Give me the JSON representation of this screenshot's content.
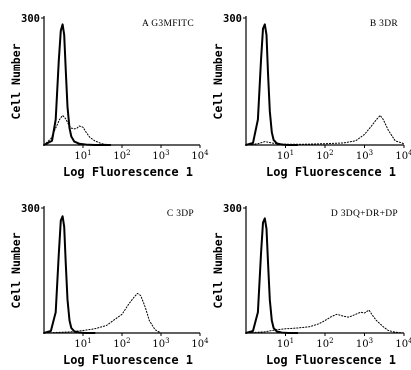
{
  "chart_data": [
    {
      "type": "line",
      "title": "A G3MFITC",
      "xlabel": "Log Fluorescence 1",
      "ylabel": "Cell Number",
      "xscale": "log",
      "xlim": [
        1,
        10000
      ],
      "ylim": [
        0,
        300
      ],
      "yticks": [
        "300"
      ],
      "xticks": [
        {
          "base": "10",
          "exp": "1"
        },
        {
          "base": "10",
          "exp": "2"
        },
        {
          "base": "10",
          "exp": "3"
        },
        {
          "base": "10",
          "exp": "4"
        }
      ],
      "series": [
        {
          "style": "solid",
          "x": [
            1.0,
            1.6,
            2.0,
            2.4,
            2.7,
            3.0,
            3.3,
            3.6,
            4.0,
            4.5,
            5.0,
            6.0,
            8.0,
            12,
            20,
            50
          ],
          "y": [
            0,
            10,
            60,
            200,
            270,
            285,
            260,
            180,
            90,
            40,
            20,
            8,
            3,
            1,
            0,
            0
          ]
        },
        {
          "style": "dotted",
          "x": [
            1.0,
            1.5,
            2.0,
            2.5,
            3.0,
            3.6,
            4.3,
            5.0,
            6.0,
            7.0,
            8.0,
            10,
            12,
            15,
            20,
            30,
            50
          ],
          "y": [
            0,
            15,
            40,
            60,
            70,
            62,
            48,
            40,
            38,
            40,
            45,
            42,
            30,
            18,
            10,
            3,
            0
          ]
        }
      ]
    },
    {
      "type": "line",
      "title": "B 3DR",
      "xlabel": "Log Fluorescence 1",
      "ylabel": "Cell Number",
      "xscale": "log",
      "xlim": [
        1,
        10000
      ],
      "ylim": [
        0,
        300
      ],
      "yticks": [
        "300"
      ],
      "xticks": [
        {
          "base": "10",
          "exp": "1"
        },
        {
          "base": "10",
          "exp": "2"
        },
        {
          "base": "10",
          "exp": "3"
        },
        {
          "base": "10",
          "exp": "4"
        }
      ],
      "series": [
        {
          "style": "solid",
          "x": [
            1.0,
            1.5,
            2.0,
            2.4,
            2.7,
            3.0,
            3.3,
            3.6,
            4.0,
            4.5,
            5.0,
            6.0,
            8.0,
            12,
            20
          ],
          "y": [
            0,
            5,
            60,
            200,
            275,
            285,
            260,
            170,
            80,
            30,
            12,
            4,
            1,
            0,
            0
          ]
        },
        {
          "style": "dotted",
          "x": [
            1.0,
            2.0,
            3.0,
            5.0,
            10,
            30,
            100,
            300,
            600,
            1000,
            1500,
            2000,
            2500,
            3000,
            4000,
            6000,
            10000
          ],
          "y": [
            0,
            3,
            8,
            4,
            2,
            2,
            3,
            5,
            10,
            25,
            45,
            60,
            70,
            60,
            35,
            10,
            3
          ]
        }
      ]
    },
    {
      "type": "line",
      "title": "C 3DP",
      "xlabel": "Log Fluorescence 1",
      "ylabel": "Cell Number",
      "xscale": "log",
      "xlim": [
        1,
        10000
      ],
      "ylim": [
        0,
        300
      ],
      "yticks": [
        "300"
      ],
      "xticks": [
        {
          "base": "10",
          "exp": "1"
        },
        {
          "base": "10",
          "exp": "2"
        },
        {
          "base": "10",
          "exp": "3"
        },
        {
          "base": "10",
          "exp": "4"
        }
      ],
      "series": [
        {
          "style": "solid",
          "x": [
            1.0,
            1.5,
            2.0,
            2.4,
            2.7,
            3.0,
            3.3,
            3.6,
            4.0,
            4.5,
            5.0,
            6.0,
            8.0,
            12,
            20
          ],
          "y": [
            0,
            5,
            50,
            190,
            270,
            280,
            255,
            170,
            80,
            30,
            12,
            4,
            1,
            0,
            0
          ]
        },
        {
          "style": "dotted",
          "x": [
            1.0,
            3.0,
            5.0,
            10,
            20,
            40,
            60,
            100,
            150,
            200,
            250,
            300,
            350,
            400,
            500,
            700,
            1000
          ],
          "y": [
            0,
            2,
            3,
            6,
            10,
            18,
            30,
            45,
            70,
            85,
            95,
            90,
            75,
            60,
            30,
            8,
            0
          ]
        }
      ]
    },
    {
      "type": "line",
      "title": "D 3DQ+DR+DP",
      "xlabel": "Log Fluorescence 1",
      "ylabel": "Cell Number",
      "xscale": "log",
      "xlim": [
        1,
        10000
      ],
      "ylim": [
        0,
        300
      ],
      "yticks": [
        "300"
      ],
      "xticks": [
        {
          "base": "10",
          "exp": "1"
        },
        {
          "base": "10",
          "exp": "2"
        },
        {
          "base": "10",
          "exp": "3"
        },
        {
          "base": "10",
          "exp": "4"
        }
      ],
      "series": [
        {
          "style": "solid",
          "x": [
            1.0,
            1.5,
            2.0,
            2.4,
            2.7,
            3.0,
            3.3,
            3.6,
            4.0,
            4.5,
            5.0,
            6.0,
            8.0,
            12,
            20
          ],
          "y": [
            0,
            5,
            50,
            190,
            265,
            275,
            250,
            170,
            80,
            30,
            12,
            4,
            1,
            0,
            0
          ]
        },
        {
          "style": "dotted",
          "x": [
            1.0,
            3.0,
            6.0,
            10,
            20,
            40,
            70,
            100,
            150,
            200,
            300,
            400,
            600,
            800,
            1000,
            1300,
            1600,
            2000,
            3000,
            4000,
            6000,
            10000
          ],
          "y": [
            0,
            3,
            8,
            10,
            12,
            15,
            22,
            30,
            40,
            45,
            40,
            38,
            45,
            50,
            48,
            55,
            42,
            30,
            15,
            6,
            2,
            0
          ]
        }
      ]
    }
  ]
}
